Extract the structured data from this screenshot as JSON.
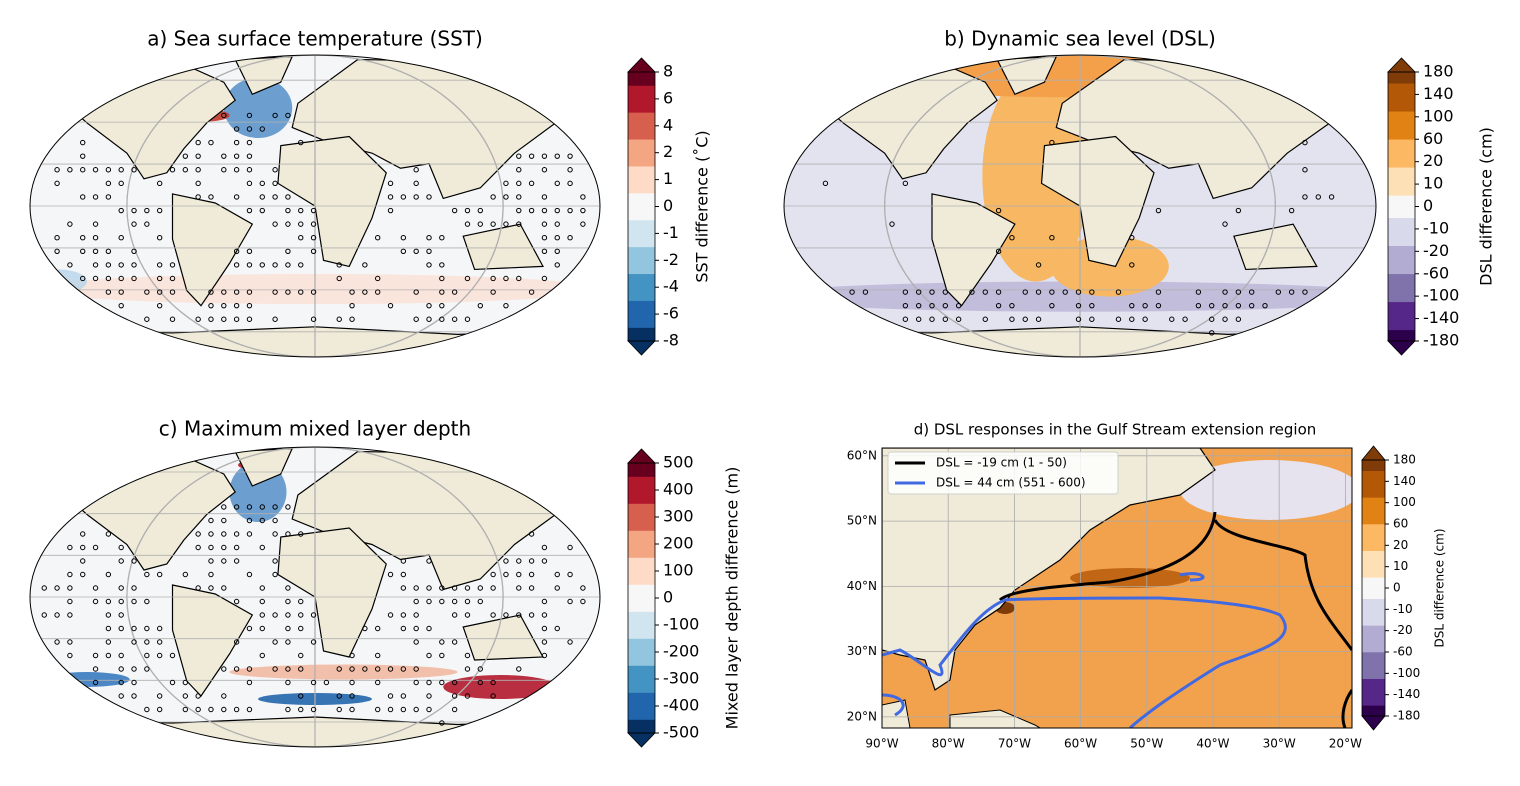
{
  "chart_data": [
    {
      "type": "map",
      "title": "a) Sea surface temperature (SST)",
      "colorbar_label": "SST difference (˚C)",
      "colormap": "RdBu_r",
      "colorbar_ticks": [
        -8,
        -6,
        -4,
        -2,
        -1,
        0,
        1,
        2,
        4,
        6,
        8
      ]
    },
    {
      "type": "map",
      "title": "b) Dynamic sea level (DSL)",
      "colorbar_label": "DSL difference (cm)",
      "colormap": "PuOr_r",
      "colorbar_ticks": [
        -180,
        -140,
        -100,
        -60,
        -20,
        -10,
        0,
        10,
        20,
        60,
        100,
        140,
        180
      ]
    },
    {
      "type": "map",
      "title": "c) Maximum mixed layer depth",
      "colorbar_label": "Mixed layer depth difference (m)",
      "colormap": "RdBu_r",
      "colorbar_ticks": [
        -500,
        -400,
        -300,
        -200,
        -100,
        0,
        100,
        200,
        300,
        400,
        500
      ]
    },
    {
      "type": "regional",
      "title": "d) DSL responses in the Gulf Stream extension region",
      "colorbar_label": "DSL difference (cm)",
      "colormap": "PuOr_r",
      "colorbar_ticks": [
        -180,
        -140,
        -100,
        -60,
        -20,
        -10,
        0,
        10,
        20,
        60,
        100,
        140,
        180
      ],
      "xlim": [
        -90,
        -19
      ],
      "ylim": [
        18.3,
        61.2
      ],
      "xticks": [
        {
          "value": -90,
          "label": "90°W"
        },
        {
          "value": -80,
          "label": "80°W"
        },
        {
          "value": -70,
          "label": "70°W"
        },
        {
          "value": -60,
          "label": "60°W"
        },
        {
          "value": -50,
          "label": "50°W"
        },
        {
          "value": -40,
          "label": "40°W"
        },
        {
          "value": -30,
          "label": "30°W"
        },
        {
          "value": -20,
          "label": "20°W"
        }
      ],
      "yticks": [
        {
          "value": 20,
          "label": "20°N"
        },
        {
          "value": 30,
          "label": "30°N"
        },
        {
          "value": 40,
          "label": "40°N"
        },
        {
          "value": 50,
          "label": "50°N"
        },
        {
          "value": 60,
          "label": "60°N"
        }
      ],
      "grid": true,
      "legend": [
        {
          "name": "DSL = -19 cm (1 - 50)",
          "color": "#000000"
        },
        {
          "name": "DSL = 44 cm (551 - 600)",
          "color": "#4169e1"
        }
      ]
    }
  ]
}
